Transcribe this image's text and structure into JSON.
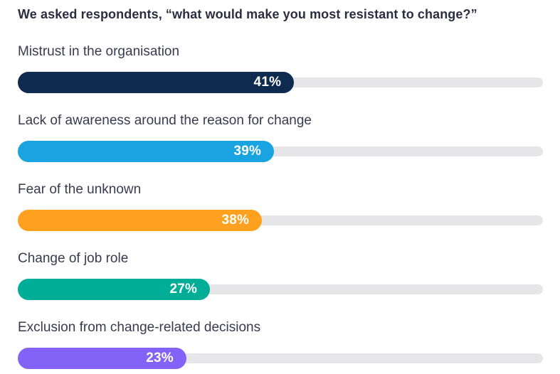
{
  "title": "We asked respondents, “what would make you most resistant to change?”",
  "chart_data": {
    "type": "bar",
    "orientation": "horizontal",
    "title": "We asked respondents, “what would make you most resistant to change?”",
    "categories": [
      "Mistrust in the organisation",
      "Lack of awareness around the reason for change",
      "Fear of the unknown",
      "Change of job role",
      "Exclusion from change-related decisions"
    ],
    "values": [
      41,
      39,
      38,
      27,
      23
    ],
    "value_suffix": "%",
    "xlabel": "",
    "ylabel": "",
    "grid": false,
    "legend": false,
    "track_color": "#e6e6e8",
    "bars": [
      {
        "label": "Mistrust in the organisation",
        "value": 41,
        "display": "41%",
        "color": "#0e2a4f",
        "fill_pct": 52.6
      },
      {
        "label": "Lack of awareness around the reason for change",
        "value": 39,
        "display": "39%",
        "color": "#1aa3e1",
        "fill_pct": 48.8
      },
      {
        "label": "Fear of the unknown",
        "value": 38,
        "display": "38%",
        "color": "#ffa01e",
        "fill_pct": 46.5
      },
      {
        "label": "Change of job role",
        "value": 27,
        "display": "27%",
        "color": "#00ad96",
        "fill_pct": 36.6
      },
      {
        "label": "Exclusion from change-related decisions",
        "value": 23,
        "display": "23%",
        "color": "#8262f7",
        "fill_pct": 32.1
      }
    ]
  }
}
